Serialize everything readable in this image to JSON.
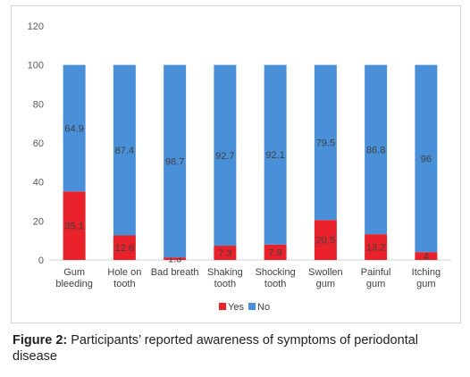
{
  "chart_data": {
    "type": "bar",
    "stacked": true,
    "categories": [
      [
        "Gum",
        "bleeding"
      ],
      [
        "Hole on",
        "tooth"
      ],
      [
        "Bad breath"
      ],
      [
        "Shaking",
        "tooth"
      ],
      [
        "Shocking",
        "tooth"
      ],
      [
        "Swollen",
        "gum"
      ],
      [
        "Painful",
        "gum"
      ],
      [
        "Itching",
        "gum"
      ]
    ],
    "series": [
      {
        "name": "Yes",
        "color": "#e8212b",
        "values": [
          35.1,
          12.6,
          1.3,
          7.3,
          7.9,
          20.5,
          13.2,
          4
        ]
      },
      {
        "name": "No",
        "color": "#4a90d9",
        "values": [
          64.9,
          87.4,
          98.7,
          92.7,
          92.1,
          79.5,
          86.8,
          96
        ]
      }
    ],
    "value_labels": {
      "Yes": [
        "35.1",
        "12.6",
        "1.3",
        "7.3",
        "7.9",
        "20.5",
        "13.2",
        "4"
      ],
      "No": [
        "64.9",
        "87.4",
        "98.7",
        "92.7",
        "92.1",
        "79.5",
        "86.8",
        "96"
      ]
    },
    "ylim": [
      0,
      120
    ],
    "yticks": [
      "0",
      "20",
      "40",
      "60",
      "80",
      "100",
      "120"
    ],
    "grid": false,
    "legend_position": "bottom"
  },
  "caption": {
    "label": "Figure 2:",
    "text": " Participants’ reported awareness of symptoms of periodontal disease"
  }
}
